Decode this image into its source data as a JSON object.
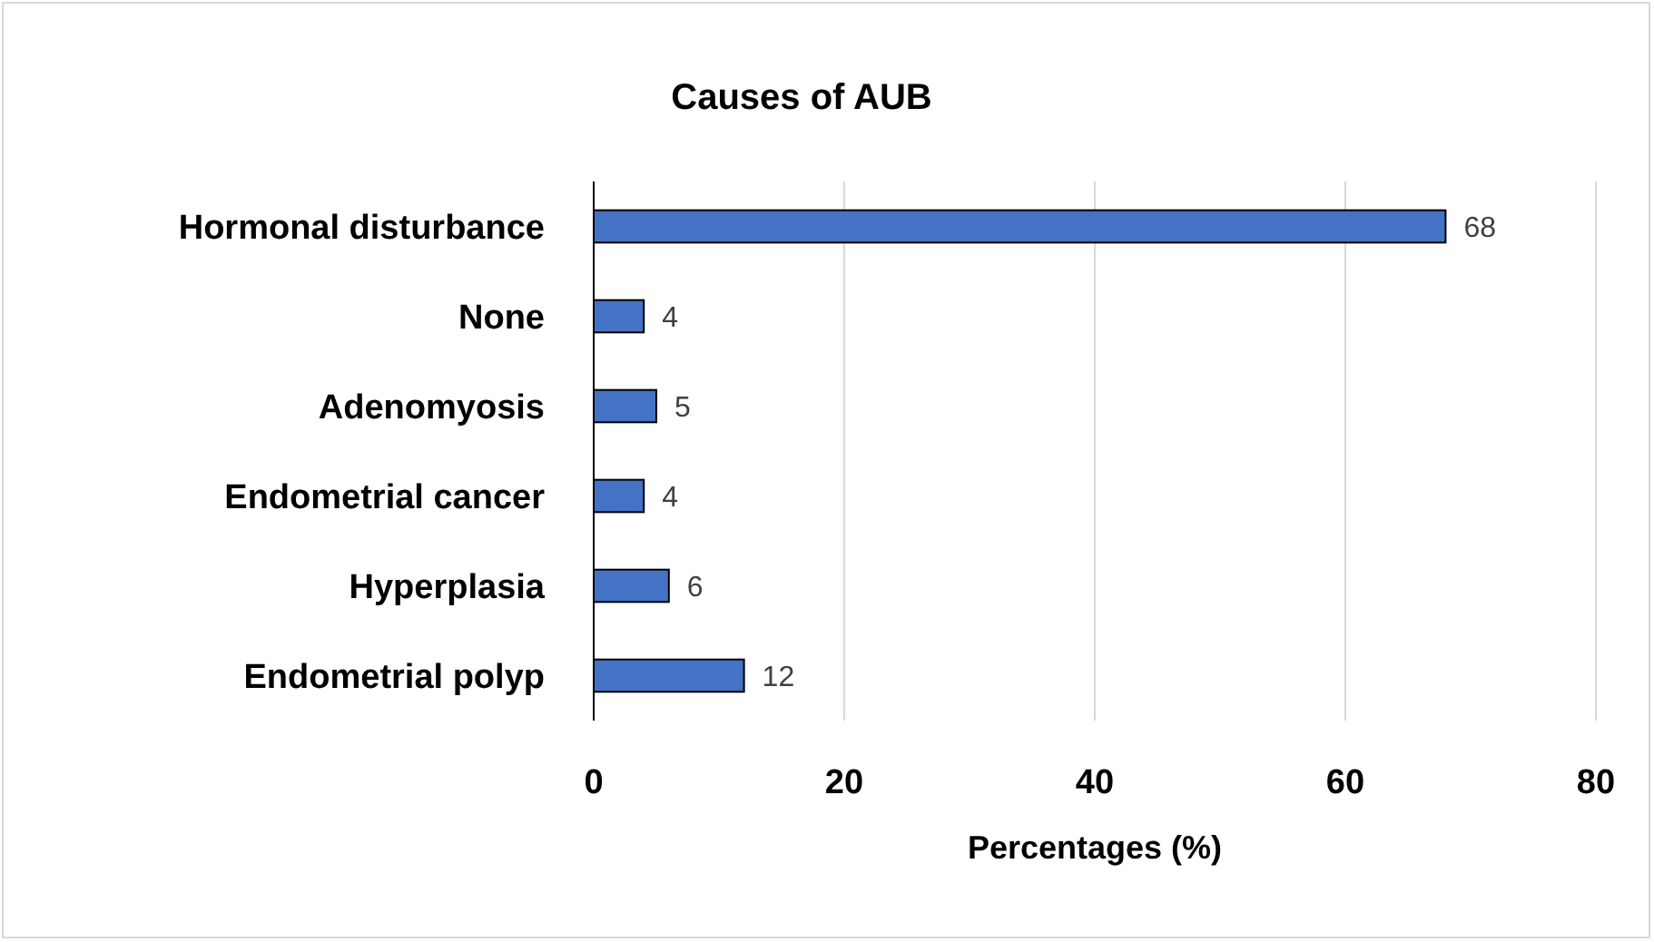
{
  "chart_data": {
    "type": "bar",
    "orientation": "horizontal",
    "title": "Causes of AUB",
    "xlabel": "Percentages (%)",
    "categories": [
      "Hormonal disturbance",
      "None",
      "Adenomyosis",
      "Endometrial cancer",
      "Hyperplasia",
      "Endometrial polyp"
    ],
    "values": [
      68,
      4,
      5,
      4,
      6,
      12
    ],
    "color": "#4472c4",
    "xlim": [
      0,
      80
    ],
    "xticks": [
      0,
      20,
      40,
      60,
      80
    ],
    "grid": "x",
    "data_labels": true
  }
}
